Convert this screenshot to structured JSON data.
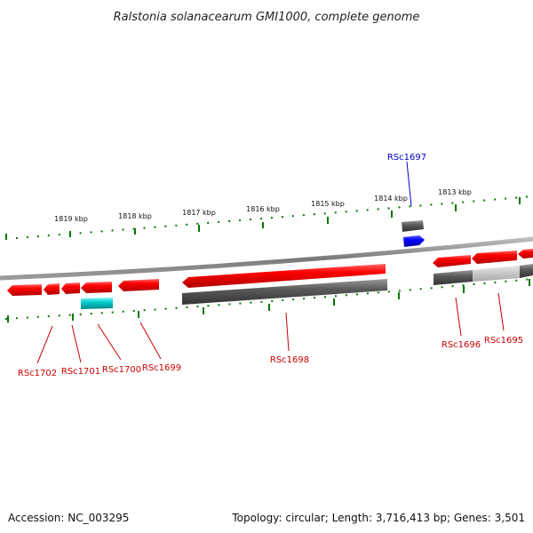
{
  "title": "Ralstonia solanacearum GMI1000, complete genome",
  "footer": {
    "accession": "Accession: NC_003295",
    "summary": "Topology: circular; Length: 3,716,413 bp; Genes: 3,501"
  },
  "scale_labels": [
    "1819 kbp",
    "1818 kbp",
    "1817 kbp",
    "1816 kbp",
    "1815 kbp",
    "1814 kbp",
    "1813 kbp"
  ],
  "colors": {
    "cds": "#ff0000",
    "cds_highlight": "#0000ff",
    "gene": "#666666",
    "gene_pale": "#bbbbbb",
    "rna": "#00cccc",
    "tick": "#007700",
    "backbone": "#888888",
    "label_red": "#cc0000",
    "label_blue": "#0000cc"
  },
  "gene_labels": [
    {
      "id": "RSc1697",
      "color": "blue"
    },
    {
      "id": "RSc1702",
      "color": "red"
    },
    {
      "id": "RSc1701",
      "color": "red"
    },
    {
      "id": "RSc1700",
      "color": "red"
    },
    {
      "id": "RSc1699",
      "color": "red"
    },
    {
      "id": "RSc1698",
      "color": "red"
    },
    {
      "id": "RSc1696",
      "color": "red"
    },
    {
      "id": "RSc1695",
      "color": "red"
    }
  ]
}
